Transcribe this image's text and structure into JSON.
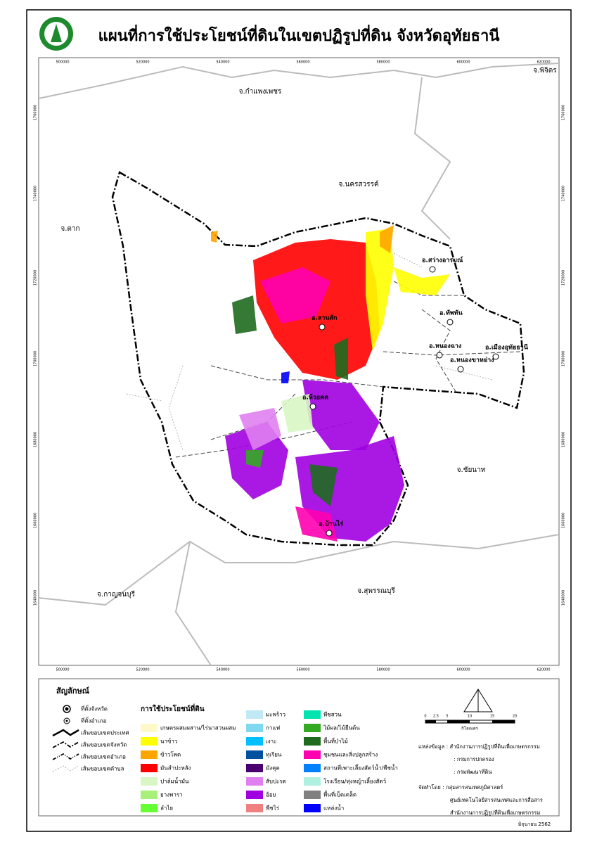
{
  "header": {
    "title": "แผนที่การใช้ประโยชน์ที่ดินในเขตปฏิรูปที่ดิน จังหวัดอุทัยธานี"
  },
  "map": {
    "province_labels": [
      "จ.กำแพงเพชร",
      "จ.พิจิตร",
      "จ.นครสวรรค์",
      "จ.ตาก",
      "จ.ชัยนาท",
      "จ.สุพรรณบุรี",
      "จ.กาญจนบุรี"
    ],
    "district_labels": [
      "อ.สว่างอารมณ์",
      "อ.ทัพทัน",
      "อ.หนองฉาง",
      "อ.เมืองอุทัยธานี",
      "อ.หนองขาหย่าง",
      "อ.ลานสัก",
      "อ.ห้วยคต",
      "อ.บ้านไร่"
    ],
    "x_coords": [
      "500000",
      "520000",
      "540000",
      "560000",
      "580000",
      "600000",
      "620000"
    ],
    "y_coords": [
      "1760000",
      "1740000",
      "1720000",
      "1700000",
      "1680000",
      "1660000",
      "1640000"
    ]
  },
  "legend": {
    "symbols_title": "สัญลักษณ์",
    "symbols": [
      "ที่ตั้งจังหวัด",
      "ที่ตั้งอำเภอ",
      "เส้นขอบเขตประเทศ",
      "เส้นขอบเขตจังหวัด",
      "เส้นขอบเขตอำเภอ",
      "เส้นขอบเขตตำบล"
    ],
    "land_use_title": "การใช้ประโยชน์ที่ดิน",
    "land_use": [
      {
        "label": "เกษตรผสมผสาน/ไร่นาสวนผสม",
        "color": "#fff8c8"
      },
      {
        "label": "นาข้าว",
        "color": "#ffff00"
      },
      {
        "label": "ข้าวโพด",
        "color": "#ffa500"
      },
      {
        "label": "มันสำปะหลัง",
        "color": "#ff0000"
      },
      {
        "label": "ปาล์มน้ำมัน",
        "color": "#d8f7c4"
      },
      {
        "label": "ยางพารา",
        "color": "#a8f07a"
      },
      {
        "label": "ลำไย",
        "color": "#66ff33"
      },
      {
        "label": "มะพร้าว",
        "color": "#c0e8f5"
      },
      {
        "label": "กาแฟ",
        "color": "#80d8f0"
      },
      {
        "label": "เงาะ",
        "color": "#00bfff"
      },
      {
        "label": "ทุเรียน",
        "color": "#0050a0"
      },
      {
        "label": "มังคุด",
        "color": "#4b0070"
      },
      {
        "label": "สับปะรด",
        "color": "#e080f0"
      },
      {
        "label": "อ้อย",
        "color": "#a000e0"
      },
      {
        "label": "พืชไร่",
        "color": "#f08080"
      },
      {
        "label": "พืชสวน",
        "color": "#00e5b0"
      },
      {
        "label": "ไม้ผล/ไม้ยืนต้น",
        "color": "#33aa22"
      },
      {
        "label": "พื้นที่ป่าไม้",
        "color": "#1e6b1e"
      },
      {
        "label": "ชุมชนและสิ่งปลูกสร้าง",
        "color": "#ff00b0"
      },
      {
        "label": "สถานที่เพาะเลี้ยงสัตว์น้ำ/พืชน้ำ",
        "color": "#0080ff"
      },
      {
        "label": "โรงเรือน/ทุ่งหญ้าเลี้ยงสัตว์",
        "color": "#b0f0e0"
      },
      {
        "label": "พื้นที่เบ็ดเตล็ด",
        "color": "#808080"
      },
      {
        "label": "แหล่งน้ำ",
        "color": "#0000ff"
      }
    ]
  },
  "scale": {
    "ticks": [
      "0",
      "2.5",
      "5",
      "10",
      "15",
      "20"
    ],
    "unit": "กิโลเมตร"
  },
  "credits": [
    "แหล่งข้อมูล : สำนักงานการปฏิรูปที่ดินเพื่อเกษตรกรรม",
    ": กรมการปกครอง",
    ": กรมพัฒนาที่ดิน",
    "จัดทำโดย : กลุ่มสารสนเทศภูมิศาสตร์",
    "ศูนย์เทคโนโลยีสารสนเทศและการสื่อสาร",
    "สำนักงานการปฏิรูปที่ดินเพื่อเกษตรกรรม"
  ],
  "date": "มิถุนายน 2562"
}
